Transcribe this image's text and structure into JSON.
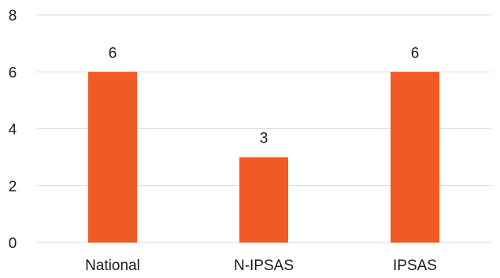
{
  "chart_data": {
    "type": "bar",
    "categories": [
      "National",
      "N-IPSAS",
      "IPSAS"
    ],
    "values": [
      6,
      3,
      6
    ],
    "data_labels": [
      "6",
      "3",
      "6"
    ],
    "y_ticks": [
      "0",
      "2",
      "4",
      "6",
      "8"
    ],
    "y_tick_values": [
      0,
      2,
      4,
      6,
      8
    ],
    "ylim": [
      0,
      8
    ],
    "title": "",
    "xlabel": "",
    "ylabel": "",
    "grid": true,
    "legend": "none",
    "bar_color": "#f15a24",
    "grid_color": "#d9d9d9"
  }
}
